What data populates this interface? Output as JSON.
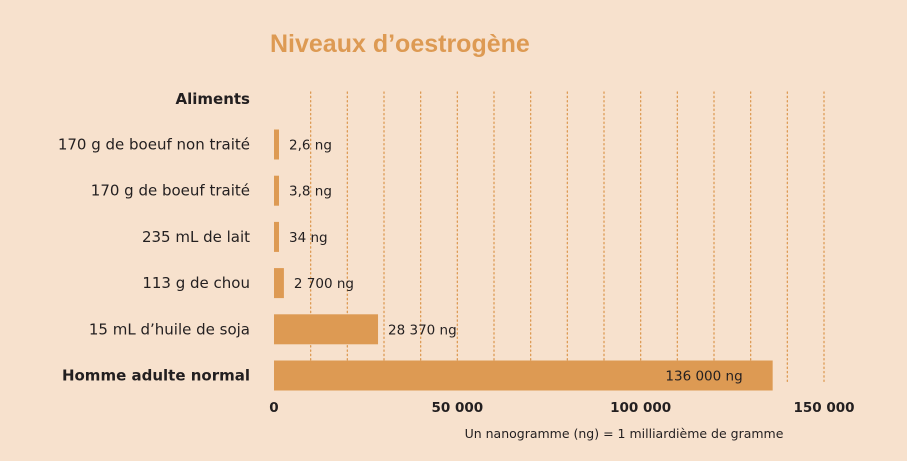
{
  "chart_data": {
    "type": "bar",
    "orientation": "horizontal",
    "title": "Niveaux d’oestrogène",
    "category_header": "Aliments",
    "categories": [
      "170 g de boeuf non traité",
      "170 g de boeuf traité",
      "235 mL de lait",
      "113 g de chou",
      "15 mL d’huile de soja",
      "Homme adulte normal"
    ],
    "bold_categories": [
      "Homme adulte normal"
    ],
    "values": [
      2.6,
      3.8,
      34,
      2700,
      28370,
      136000
    ],
    "value_labels": [
      "2,6 ng",
      "3,8 ng",
      "34 ng",
      "2 700 ng",
      "28 370 ng",
      "136 000 ng"
    ],
    "x_ticks": [
      0,
      50000,
      100000,
      150000
    ],
    "x_tick_labels": [
      "0",
      "50 000",
      "100 000",
      "150 000"
    ],
    "xlim": [
      0,
      150000
    ],
    "grid": "vertical dotted",
    "footnote": "Un nanogramme (ng) = 1 milliardième de gramme",
    "colors": {
      "bar": "#dd9a53",
      "grid": "#dd9a53",
      "title": "#dd9a53",
      "background": "#f7e1cd",
      "text": "#231f20"
    }
  }
}
